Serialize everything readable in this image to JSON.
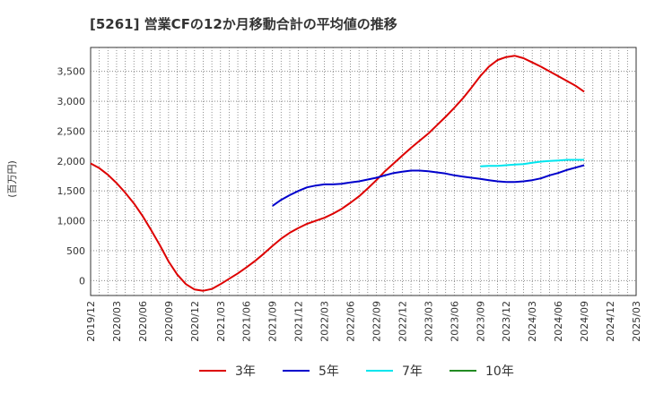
{
  "chart_data": {
    "type": "line",
    "title": "[5261]  営業CFの12か月移動合計の平均値の推移",
    "ylabel": "(百万円)",
    "xlabel": "",
    "ylim": [
      -250,
      3900
    ],
    "yticks": [
      0,
      500,
      1000,
      1500,
      2000,
      2500,
      3000,
      3500
    ],
    "ytick_labels": [
      "0",
      "500",
      "1,000",
      "1,500",
      "2,000",
      "2,500",
      "3,000",
      "3,500"
    ],
    "xlim": [
      "2019-12",
      "2025-03"
    ],
    "xtick_labels": [
      "2019/12",
      "2020/03",
      "2020/06",
      "2020/09",
      "2020/12",
      "2021/03",
      "2021/06",
      "2021/09",
      "2021/12",
      "2022/03",
      "2022/06",
      "2022/09",
      "2022/12",
      "2023/03",
      "2023/06",
      "2023/09",
      "2023/12",
      "2024/03",
      "2024/06",
      "2024/09",
      "2024/12",
      "2025/03"
    ],
    "grid": true,
    "legend_position": "bottom",
    "series": [
      {
        "name": "3年",
        "color": "#dd0000",
        "x": [
          "2019-12",
          "2020-01",
          "2020-02",
          "2020-03",
          "2020-04",
          "2020-05",
          "2020-06",
          "2020-07",
          "2020-08",
          "2020-09",
          "2020-10",
          "2020-11",
          "2020-12",
          "2021-01",
          "2021-02",
          "2021-03",
          "2021-04",
          "2021-05",
          "2021-06",
          "2021-07",
          "2021-08",
          "2021-09",
          "2021-10",
          "2021-11",
          "2021-12",
          "2022-01",
          "2022-02",
          "2022-03",
          "2022-04",
          "2022-05",
          "2022-06",
          "2022-07",
          "2022-08",
          "2022-09",
          "2022-10",
          "2022-11",
          "2022-12",
          "2023-01",
          "2023-02",
          "2023-03",
          "2023-04",
          "2023-05",
          "2023-06",
          "2023-07",
          "2023-08",
          "2023-09",
          "2023-10",
          "2023-11",
          "2023-12",
          "2024-01",
          "2024-02",
          "2024-03",
          "2024-04",
          "2024-05",
          "2024-06",
          "2024-07",
          "2024-08",
          "2024-09"
        ],
        "values": [
          1960,
          1880,
          1770,
          1630,
          1470,
          1290,
          1080,
          840,
          590,
          320,
          100,
          -60,
          -150,
          -170,
          -140,
          -60,
          30,
          120,
          220,
          330,
          450,
          580,
          700,
          800,
          880,
          950,
          1000,
          1050,
          1120,
          1200,
          1300,
          1410,
          1540,
          1680,
          1830,
          1960,
          2090,
          2220,
          2340,
          2460,
          2600,
          2740,
          2890,
          3050,
          3230,
          3420,
          3580,
          3690,
          3740,
          3760,
          3720,
          3650,
          3580,
          3500,
          3420,
          3340,
          3260,
          3160
        ]
      },
      {
        "name": "5年",
        "color": "#0000cc",
        "x": [
          "2021-09",
          "2021-10",
          "2021-11",
          "2021-12",
          "2022-01",
          "2022-02",
          "2022-03",
          "2022-04",
          "2022-05",
          "2022-06",
          "2022-07",
          "2022-08",
          "2022-09",
          "2022-10",
          "2022-11",
          "2022-12",
          "2023-01",
          "2023-02",
          "2023-03",
          "2023-04",
          "2023-05",
          "2023-06",
          "2023-07",
          "2023-08",
          "2023-09",
          "2023-10",
          "2023-11",
          "2023-12",
          "2024-01",
          "2024-02",
          "2024-03",
          "2024-04",
          "2024-05",
          "2024-06",
          "2024-07",
          "2024-08",
          "2024-09"
        ],
        "values": [
          1250,
          1350,
          1430,
          1500,
          1560,
          1590,
          1610,
          1610,
          1620,
          1640,
          1660,
          1690,
          1720,
          1760,
          1800,
          1820,
          1840,
          1840,
          1830,
          1810,
          1790,
          1760,
          1740,
          1720,
          1700,
          1680,
          1660,
          1650,
          1650,
          1660,
          1680,
          1710,
          1760,
          1800,
          1850,
          1890,
          1930
        ]
      },
      {
        "name": "7年",
        "color": "#00e5ee",
        "x": [
          "2023-09",
          "2023-10",
          "2023-11",
          "2023-12",
          "2024-01",
          "2024-02",
          "2024-03",
          "2024-04",
          "2024-05",
          "2024-06",
          "2024-07",
          "2024-08",
          "2024-09"
        ],
        "values": [
          1910,
          1920,
          1920,
          1930,
          1940,
          1950,
          1970,
          1990,
          2000,
          2010,
          2020,
          2020,
          2020
        ]
      },
      {
        "name": "10年",
        "color": "#228b22",
        "x": [],
        "values": []
      }
    ]
  }
}
